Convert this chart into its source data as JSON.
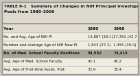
{
  "title_line1": "TABLE 6-1   Summary of Changes in NIH Principal Investiga",
  "title_line2": "Pools from 1980–2006",
  "headers": [
    "Year",
    "1980",
    "1998"
  ],
  "rows": [
    [
      "No. and Avg. Age of NIH PI",
      "14,887 (39.1)",
      "17,761 (42.7"
    ],
    [
      "Number and Average Age of NIH New PI",
      "1,843 (37.2)",
      "1,355 (39.0)"
    ],
    [
      "No. of Med. School Faculty Positions",
      "53,552",
      "73,413"
    ],
    [
      "Avg. Age of Med. School Faculty",
      "43.1",
      "45.2"
    ],
    [
      "Avg. Age of First-time Assist. Prof.",
      "33.9",
      "35.4"
    ]
  ],
  "highlight_row": 2,
  "outer_bg": "#c8c4bc",
  "table_bg": "#f0ece0",
  "header_bg": "#e0dcd0",
  "highlight_bg": "#a8a49c",
  "border_color": "#908c84",
  "title_bg": "#dedad0",
  "title_color": "#111111",
  "header_color": "#111111",
  "row_color": "#111111",
  "highlight_color": "#111111",
  "col_splits": [
    0.62,
    0.81
  ],
  "title_fontsize": 4.2,
  "header_fontsize": 4.2,
  "row_fontsize": 3.9
}
